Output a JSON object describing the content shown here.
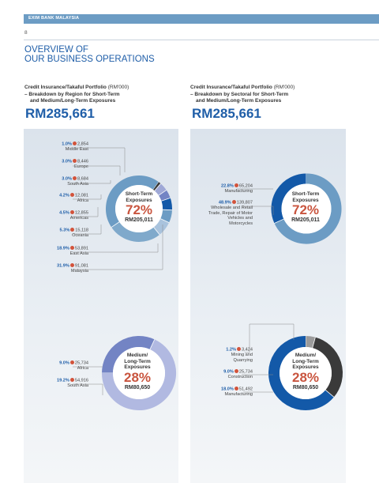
{
  "header": {
    "bank": "EXIM BANK MALAYSIA",
    "page": "8"
  },
  "title": {
    "line1": "OVERVIEW OF",
    "line2": "OUR BUSINESS OPERATIONS"
  },
  "columns": {
    "left": {
      "heading_bold": "Credit Insurance/Takaful Portfolio",
      "heading_unit": " (RM'000)",
      "heading_line2": "– Breakdown by Region for Short-Term",
      "heading_line3": "and Medium/Long-Term Exposures",
      "total": "RM285,661"
    },
    "right": {
      "heading_bold": "Credit Insurance/Takaful Portfolio",
      "heading_unit": " (RM'000)",
      "heading_line2": "– Breakdown by Sectoral for Short-Term",
      "heading_line3": "and Medium/Long-Term Exposures",
      "total": "RM285,661"
    }
  },
  "charts": {
    "left_short": {
      "title": "Short-Term\nExposures",
      "pct": "72%",
      "amount": "RM205,011"
    },
    "left_medium": {
      "title": "Medium/\nLong-Term\nExposures",
      "pct": "28%",
      "amount": "RM80,650"
    },
    "right_short": {
      "title": "Short-Term\nExposures",
      "pct": "72%",
      "amount": "RM205,011"
    },
    "right_medium": {
      "title": "Medium/\nLong-Term\nExposures",
      "pct": "28%",
      "amount": "RM80,650"
    }
  },
  "chart_data": [
    {
      "type": "pie",
      "id": "left_short",
      "labels": [
        "Middle East",
        "Europe",
        "South Asia",
        "Africa",
        "Americas",
        "Oceania",
        "East Asia",
        "Malaysia"
      ],
      "percent_labels": [
        "1.0%",
        "3.0%",
        "3.0%",
        "4.2%",
        "4.5%",
        "5.3%",
        "18.9%",
        "31.9%"
      ],
      "value_labels": [
        "2,854",
        "8,446",
        "8,684",
        "12,081",
        "12,855",
        "15,118",
        "53,891",
        "91,081"
      ],
      "values": [
        2854,
        8446,
        8684,
        12081,
        12855,
        15118,
        53891,
        91081
      ],
      "colors": [
        "#3a3a3a",
        "#9fa8d6",
        "#7384c4",
        "#1359a8",
        "#6c9cc4",
        "#a9c3dd",
        "#7fa9cb",
        "#6c9cc4"
      ]
    },
    {
      "type": "pie",
      "id": "left_medium",
      "labels": [
        "Africa",
        "South Asia"
      ],
      "percent_labels": [
        "9.0%",
        "19.2%"
      ],
      "value_labels": [
        "25,734",
        "54,916"
      ],
      "values": [
        25734,
        54916
      ],
      "colors": [
        "#7384c4",
        "#b1b9e1"
      ]
    },
    {
      "type": "pie",
      "id": "right_short",
      "labels": [
        "Manufacturing",
        "Wholesale and Retail Trade, Repair of Motor Vehicles and Motorcycles"
      ],
      "percent_labels": [
        "22.8%",
        "48.9%"
      ],
      "value_labels": [
        "65,204",
        "139,807"
      ],
      "values": [
        65204,
        139807
      ],
      "colors": [
        "#1359a8",
        "#6c9cc4"
      ]
    },
    {
      "type": "pie",
      "id": "right_medium",
      "labels": [
        "Mining and Quarrying",
        "Construction",
        "Manufacturing"
      ],
      "percent_labels": [
        "1.2%",
        "9.0%",
        "18.0%"
      ],
      "value_labels": [
        "3,424",
        "25,734",
        "51,492"
      ],
      "values": [
        3424,
        25734,
        51492
      ],
      "colors": [
        "#9b9b9b",
        "#3a3a3a",
        "#1359a8"
      ]
    }
  ]
}
